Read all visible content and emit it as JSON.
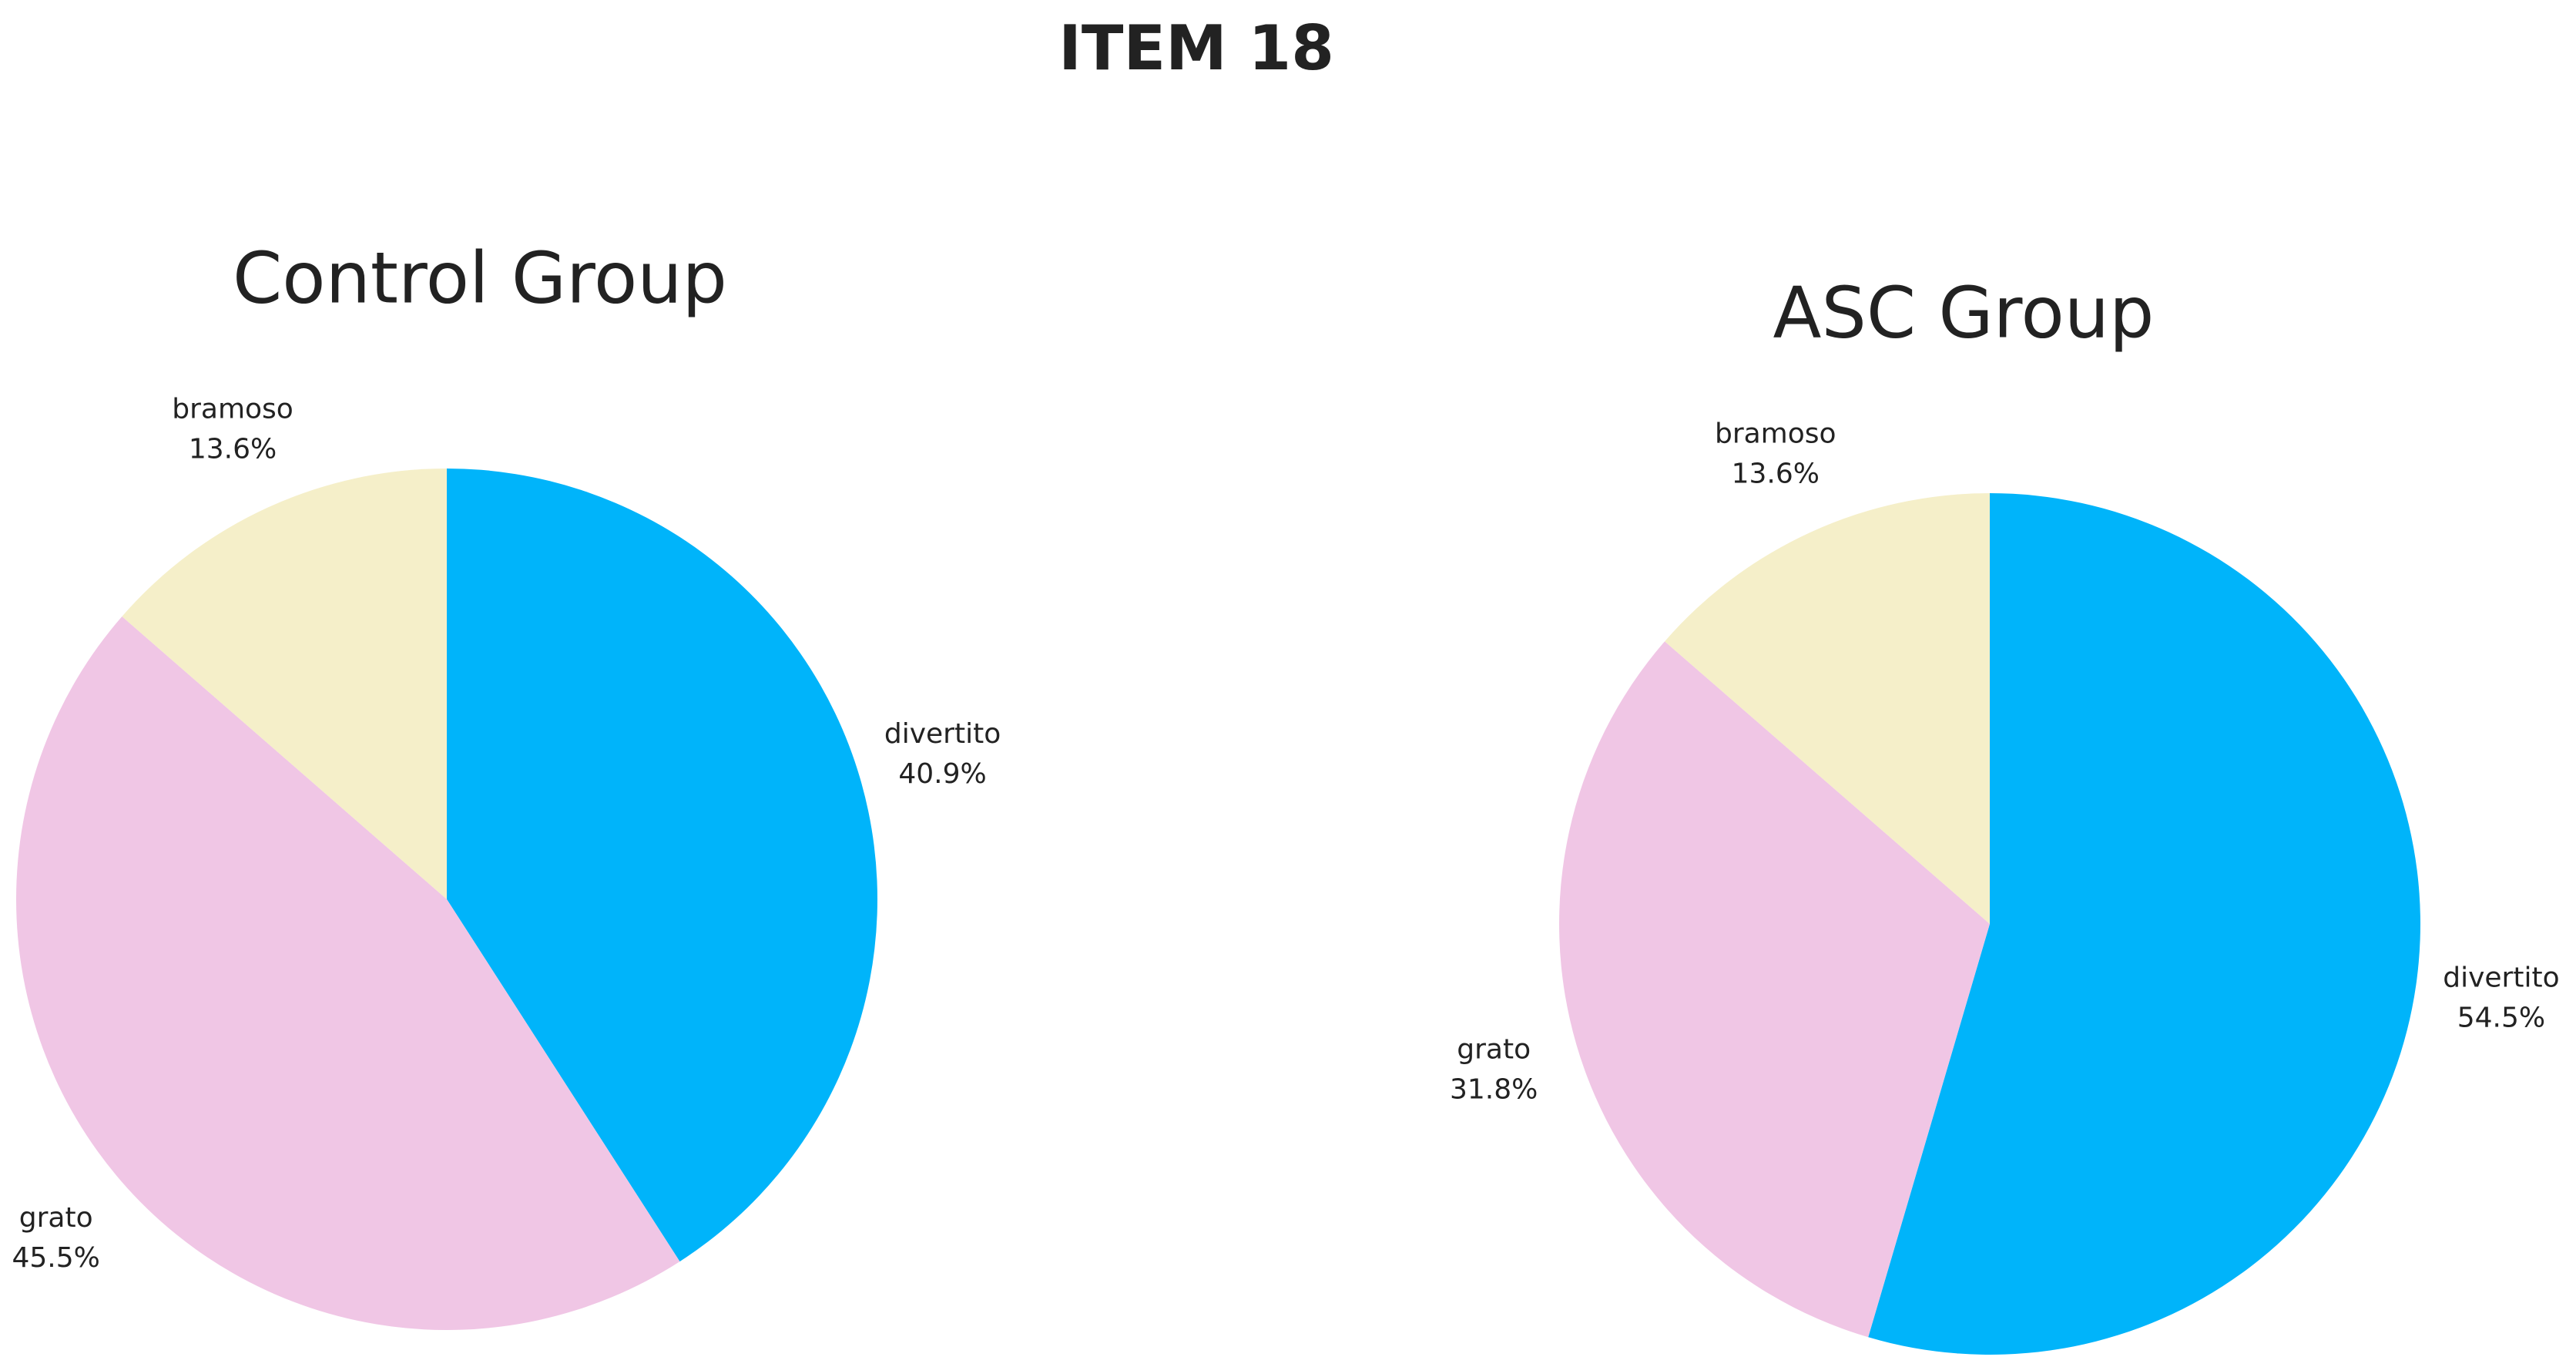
{
  "title": "ITEM 18",
  "chart_data": [
    {
      "type": "pie",
      "title": "Control Group",
      "categories": [
        "divertito",
        "grato",
        "bramoso"
      ],
      "values": [
        40.9,
        45.5,
        13.6
      ],
      "value_labels": [
        "40.9%",
        "45.5%",
        "13.6%"
      ],
      "colors": [
        "#00b4fa",
        "#f0c6e5",
        "#f5efc9"
      ]
    },
    {
      "type": "pie",
      "title": "ASC Group",
      "categories": [
        "divertito",
        "grato",
        "bramoso"
      ],
      "values": [
        54.5,
        31.8,
        13.6
      ],
      "value_labels": [
        "54.5%",
        "31.8%",
        "13.6%"
      ],
      "colors": [
        "#00b4fa",
        "#f0c6e5",
        "#f5efc9"
      ]
    }
  ]
}
